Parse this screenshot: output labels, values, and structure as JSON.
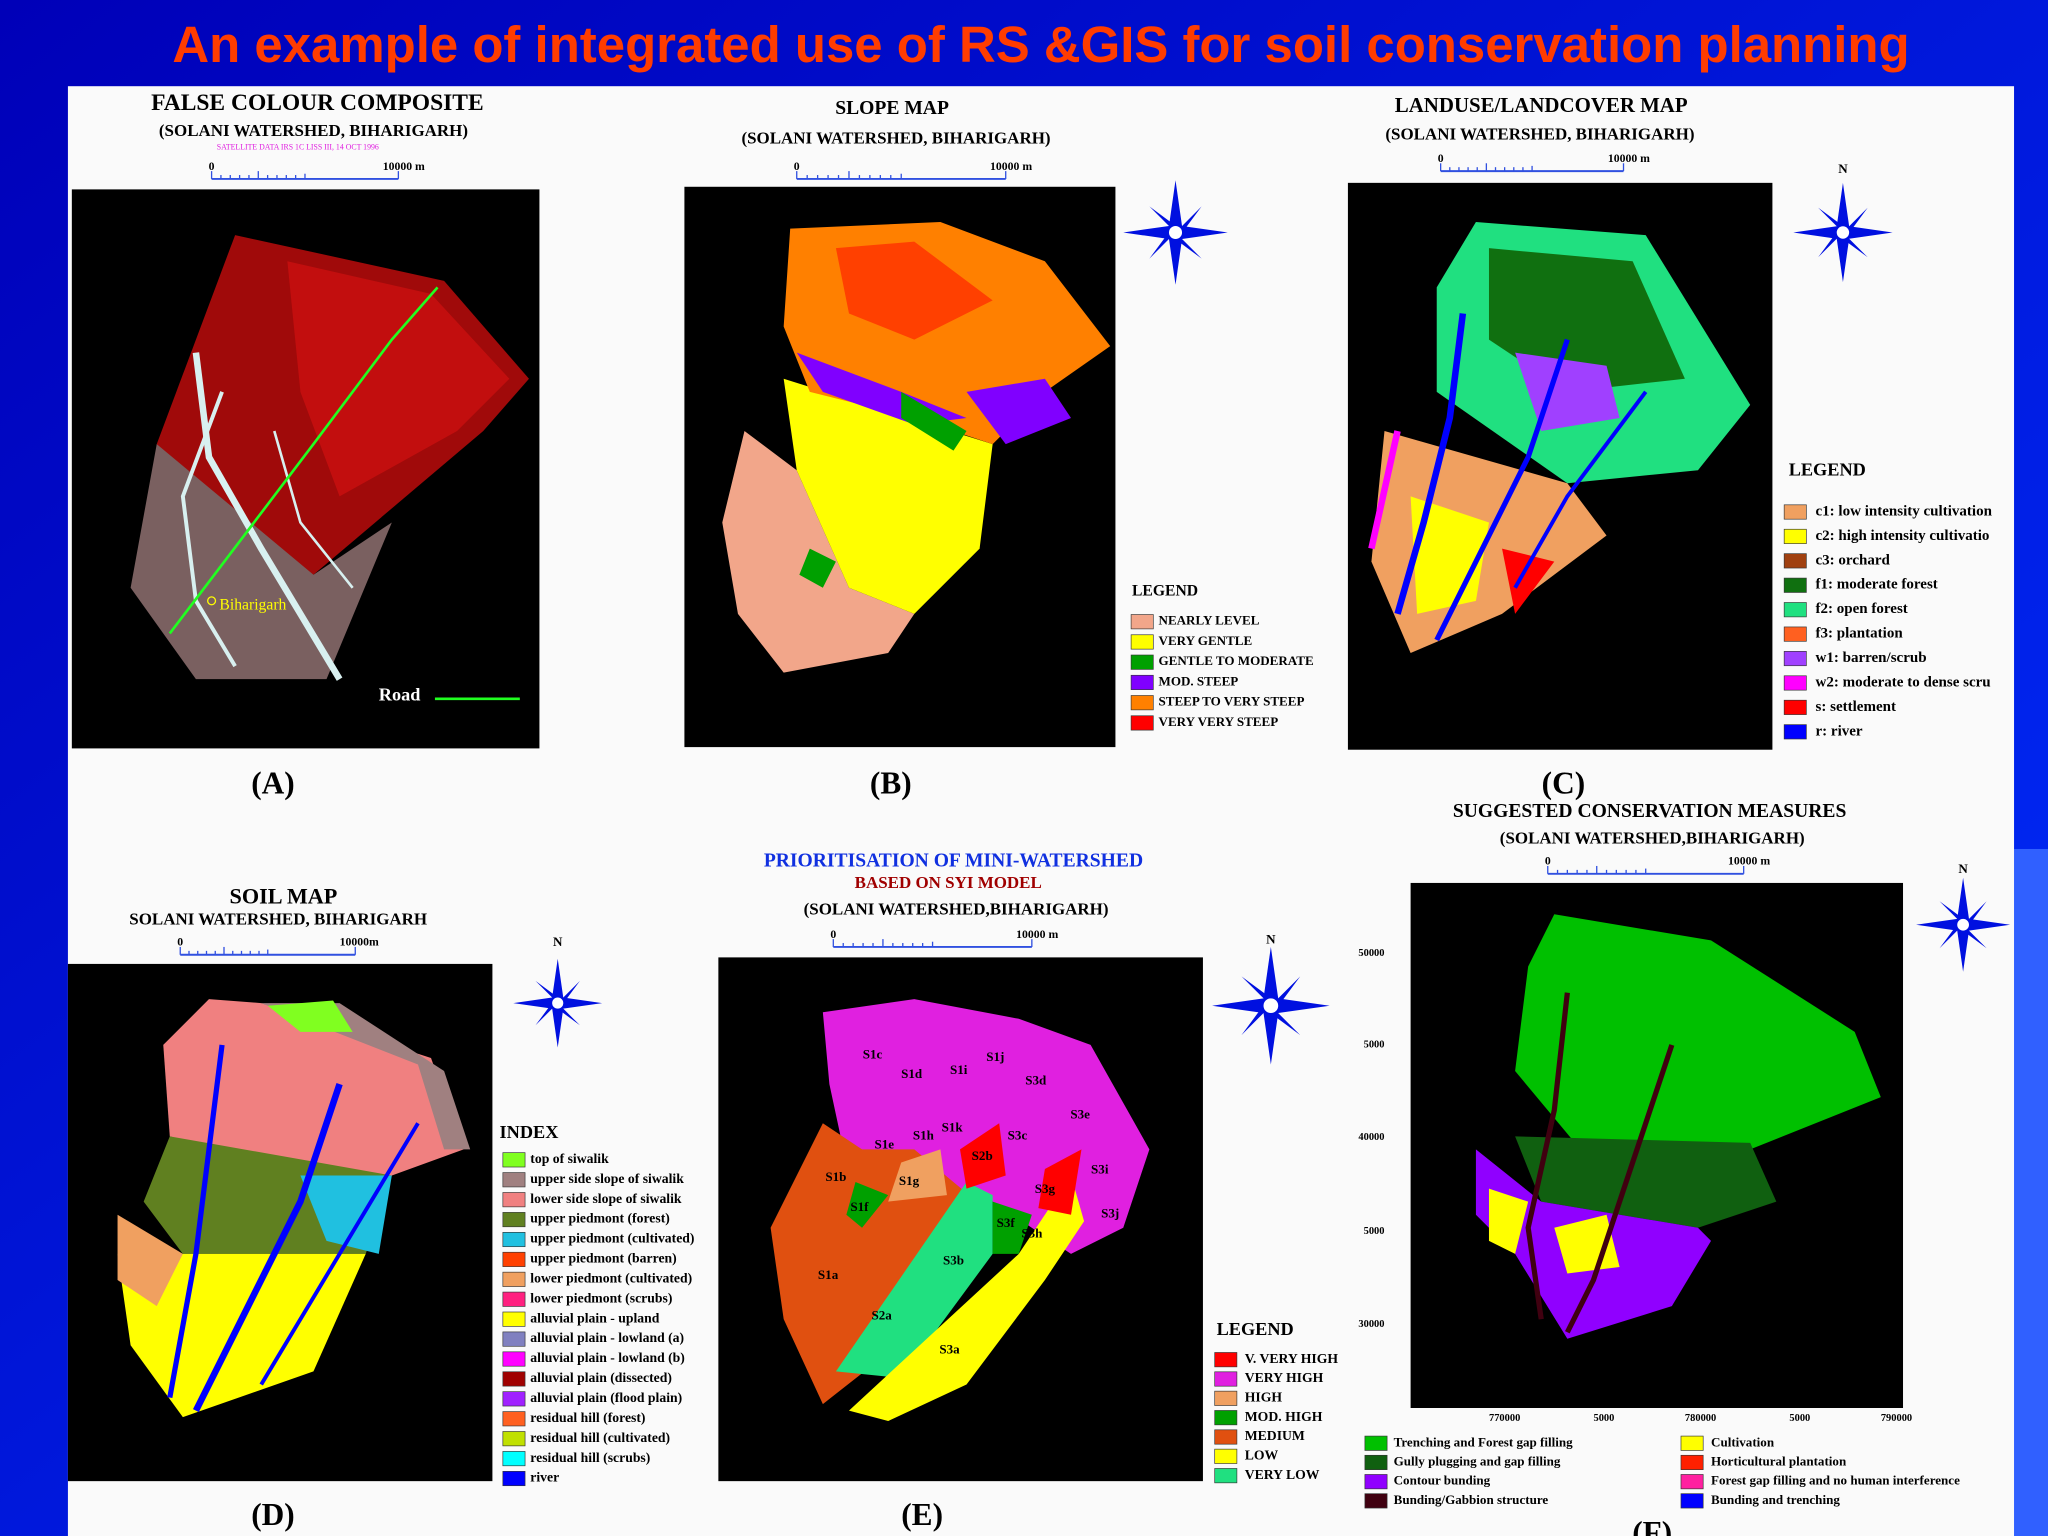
{
  "title": "An example of integrated use of RS &GIS for soil conservation planning",
  "panels": [
    {
      "title": "FALSE COLOUR COMPOSITE",
      "subtitle": "(SOLANI WATERSHED, BIHARIGARH)",
      "note": "SATELLITE DATA IRS 1C LISS III, 14 OCT 1996",
      "scale_start": "0",
      "scale_end": "10000 m",
      "map_labels": [
        "Biharigarh",
        "Road"
      ],
      "label": "(A)"
    },
    {
      "title": "SLOPE MAP",
      "subtitle": "(SOLANI WATERSHED, BIHARIGARH)",
      "scale_start": "0",
      "scale_end": "10000 m",
      "legend_title": "LEGEND",
      "legend": [
        {
          "label": "NEARLY LEVEL",
          "color": "#f2a68a"
        },
        {
          "label": "VERY GENTLE",
          "color": "#ffff00"
        },
        {
          "label": "GENTLE TO MODERATE",
          "color": "#00a000"
        },
        {
          "label": "MOD. STEEP",
          "color": "#8000ff"
        },
        {
          "label": "STEEP TO VERY STEEP",
          "color": "#ff8000"
        },
        {
          "label": "VERY VERY STEEP",
          "color": "#ff0000"
        }
      ],
      "label": "(B)"
    },
    {
      "title": "LANDUSE/LANDCOVER MAP",
      "subtitle": "(SOLANI WATERSHED, BIHARIGARH)",
      "scale_start": "0",
      "scale_end": "10000 m",
      "north": "N",
      "legend_title": "LEGEND",
      "legend": [
        {
          "label": "c1: low intensity cultivation",
          "color": "#f0a060"
        },
        {
          "label": "c2: high intensity cultivatio",
          "color": "#ffff00"
        },
        {
          "label": "c3: orchard",
          "color": "#a04010"
        },
        {
          "label": "f1: moderate forest",
          "color": "#107010"
        },
        {
          "label": "f2: open forest",
          "color": "#20e080"
        },
        {
          "label": "f3: plantation",
          "color": "#ff6020"
        },
        {
          "label": "w1: barren/scrub",
          "color": "#a040ff"
        },
        {
          "label": "w2: moderate to dense scru",
          "color": "#ff00ff"
        },
        {
          "label": "s: settlement",
          "color": "#ff0000"
        },
        {
          "label": "r: river",
          "color": "#0000ff"
        }
      ],
      "label": "(C)"
    },
    {
      "title": "SOIL MAP",
      "subtitle": "SOLANI WATERSHED, BIHARIGARH",
      "scale_start": "0",
      "scale_end": "10000m",
      "north": "N",
      "legend_title": "INDEX",
      "legend": [
        {
          "label": "top of siwalik",
          "color": "#80ff20"
        },
        {
          "label": "upper side slope of siwalik",
          "color": "#a08080"
        },
        {
          "label": "lower side slope of siwalik",
          "color": "#f08080"
        },
        {
          "label": "upper piedmont (forest)",
          "color": "#608020"
        },
        {
          "label": "upper piedmont (cultivated)",
          "color": "#20c0e0"
        },
        {
          "label": "upper piedmont (barren)",
          "color": "#ff4000"
        },
        {
          "label": "lower piedmont (cultivated)",
          "color": "#f0a060"
        },
        {
          "label": "lower piedmont (scrubs)",
          "color": "#ff2080"
        },
        {
          "label": "alluvial plain - upland",
          "color": "#ffff00"
        },
        {
          "label": "alluvial plain - lowland (a)",
          "color": "#8080c0"
        },
        {
          "label": "alluvial plain - lowland (b)",
          "color": "#ff00ff"
        },
        {
          "label": "alluvial plain (dissected)",
          "color": "#a00000"
        },
        {
          "label": "alluvial plain (flood plain)",
          "color": "#a020ff"
        },
        {
          "label": "residual hill (forest)",
          "color": "#ff6020"
        },
        {
          "label": "residual hill (cultivated)",
          "color": "#c0e000"
        },
        {
          "label": "residual hill (scrubs)",
          "color": "#00ffff"
        },
        {
          "label": "river",
          "color": "#0000ff"
        }
      ],
      "label": "(D)"
    },
    {
      "title": "PRIORITISATION OF MINI-WATERSHED",
      "subtitle": "BASED ON SYI MODEL",
      "subtitle2": "(SOLANI WATERSHED,BIHARIGARH)",
      "scale_start": "0",
      "scale_end": "10000 m",
      "north": "N",
      "map_labels": [
        "S1c",
        "S1d",
        "S1i",
        "S1j",
        "S3d",
        "S3e",
        "S1e",
        "S1h",
        "S1k",
        "S2b",
        "S3c",
        "S3i",
        "S1b",
        "S1g",
        "S3g",
        "S1f",
        "S3f",
        "S3h",
        "S3j",
        "S1a",
        "S3b",
        "S2a",
        "S3a"
      ],
      "legend_title": "LEGEND",
      "legend": [
        {
          "label": "V. VERY HIGH",
          "color": "#ff0000"
        },
        {
          "label": "VERY HIGH",
          "color": "#e020e0"
        },
        {
          "label": "HIGH",
          "color": "#f0a060"
        },
        {
          "label": "MOD. HIGH",
          "color": "#00a000"
        },
        {
          "label": "MEDIUM",
          "color": "#e05010"
        },
        {
          "label": "LOW",
          "color": "#ffff00"
        },
        {
          "label": "VERY LOW",
          "color": "#20e080"
        }
      ],
      "label": "(E)"
    },
    {
      "title": "SUGGESTED CONSERVATION MEASURES",
      "subtitle": "(SOLANI WATERSHED,BIHARIGARH)",
      "scale_start": "0",
      "scale_end": "10000 m",
      "north": "N",
      "y_labels": [
        "50000",
        "5000",
        "40000",
        "5000",
        "30000"
      ],
      "x_labels": [
        "770000",
        "5000",
        "780000",
        "5000",
        "790000"
      ],
      "legend": [
        {
          "label": "Trenching and Forest gap filling",
          "color": "#00c000"
        },
        {
          "label": "Gully plugging and gap filling",
          "color": "#106010"
        },
        {
          "label": "Contour bunding",
          "color": "#9000ff"
        },
        {
          "label": "Bunding/Gabbion structure",
          "color": "#400010"
        },
        {
          "label": "Cultivation",
          "color": "#ffff00"
        },
        {
          "label": "Horticultural plantation",
          "color": "#ff2000"
        },
        {
          "label": "Forest gap filling and no human interference",
          "color": "#ff20a0"
        },
        {
          "label": "Bunding and trenching",
          "color": "#0000ff"
        }
      ],
      "label": "(F)"
    }
  ]
}
